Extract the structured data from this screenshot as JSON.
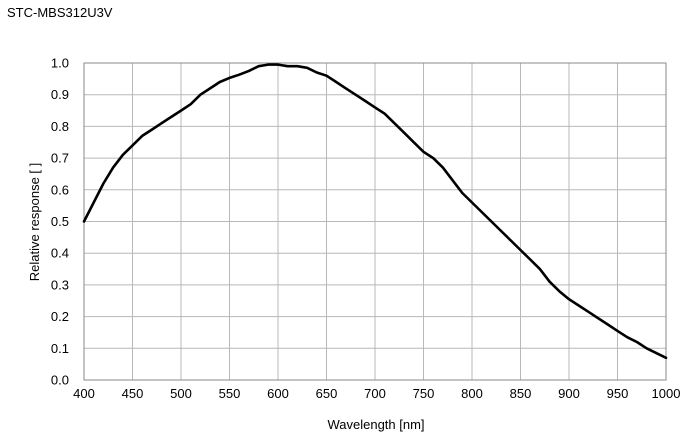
{
  "chart_data": {
    "type": "line",
    "title": "STC-MBS312U3V",
    "xlabel": "Wavelength [nm]",
    "ylabel": "Relative response [ ]",
    "xlim": [
      400,
      1000
    ],
    "ylim": [
      0.0,
      1.0
    ],
    "xticks": [
      "400",
      "450",
      "500",
      "550",
      "600",
      "650",
      "700",
      "750",
      "800",
      "850",
      "900",
      "950",
      "1000"
    ],
    "yticks": [
      "0.0",
      "0.1",
      "0.2",
      "0.3",
      "0.4",
      "0.5",
      "0.6",
      "0.7",
      "0.8",
      "0.9",
      "1.0"
    ],
    "grid": true,
    "series": [
      {
        "color": "#000000",
        "x": [
          400,
          410,
          420,
          430,
          440,
          450,
          460,
          470,
          480,
          490,
          500,
          510,
          520,
          530,
          540,
          550,
          560,
          570,
          580,
          590,
          600,
          610,
          620,
          630,
          640,
          650,
          660,
          670,
          680,
          690,
          700,
          710,
          720,
          730,
          740,
          750,
          760,
          770,
          780,
          790,
          800,
          810,
          820,
          830,
          840,
          850,
          860,
          870,
          880,
          890,
          900,
          910,
          920,
          930,
          940,
          950,
          960,
          970,
          980,
          990,
          1000
        ],
        "y": [
          0.5,
          0.56,
          0.62,
          0.67,
          0.71,
          0.74,
          0.77,
          0.79,
          0.81,
          0.83,
          0.85,
          0.87,
          0.9,
          0.92,
          0.94,
          0.953,
          0.963,
          0.975,
          0.99,
          0.995,
          0.995,
          0.99,
          0.99,
          0.985,
          0.97,
          0.96,
          0.94,
          0.92,
          0.9,
          0.88,
          0.86,
          0.84,
          0.81,
          0.78,
          0.75,
          0.72,
          0.7,
          0.67,
          0.63,
          0.59,
          0.56,
          0.53,
          0.5,
          0.47,
          0.44,
          0.41,
          0.38,
          0.35,
          0.31,
          0.28,
          0.255,
          0.235,
          0.215,
          0.195,
          0.175,
          0.155,
          0.135,
          0.12,
          0.1,
          0.085,
          0.07
        ]
      }
    ]
  }
}
